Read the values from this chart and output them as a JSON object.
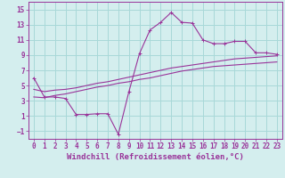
{
  "background_color": "#d4eeee",
  "grid_color": "#a8d8d8",
  "line_color": "#993399",
  "xlabel": "Windchill (Refroidissement éolien,°C)",
  "xlim": [
    -0.5,
    23.5
  ],
  "ylim": [
    -2.0,
    16.0
  ],
  "yticks": [
    -1,
    1,
    3,
    5,
    7,
    9,
    11,
    13,
    15
  ],
  "xticks": [
    0,
    1,
    2,
    3,
    4,
    5,
    6,
    7,
    8,
    9,
    10,
    11,
    12,
    13,
    14,
    15,
    16,
    17,
    18,
    19,
    20,
    21,
    22,
    23
  ],
  "line1_x": [
    0,
    1,
    2,
    3,
    4,
    5,
    6,
    7,
    8,
    9,
    10,
    11,
    12,
    13,
    14,
    15,
    16,
    17,
    18,
    19,
    20,
    21,
    22,
    23
  ],
  "line1_y": [
    6.0,
    3.5,
    3.5,
    3.3,
    1.2,
    1.2,
    1.3,
    1.3,
    -1.4,
    4.2,
    9.2,
    12.3,
    13.3,
    14.6,
    13.3,
    13.2,
    11.0,
    10.5,
    10.5,
    10.8,
    10.8,
    9.3,
    9.3,
    9.1
  ],
  "line2_x": [
    0,
    1,
    2,
    3,
    4,
    5,
    6,
    7,
    8,
    9,
    10,
    11,
    12,
    13,
    14,
    15,
    16,
    17,
    18,
    19,
    20,
    21,
    22,
    23
  ],
  "line2_y": [
    4.5,
    4.2,
    4.4,
    4.5,
    4.7,
    5.0,
    5.3,
    5.5,
    5.8,
    6.1,
    6.4,
    6.7,
    7.0,
    7.3,
    7.5,
    7.7,
    7.9,
    8.1,
    8.3,
    8.5,
    8.6,
    8.7,
    8.8,
    8.9
  ],
  "line3_x": [
    0,
    1,
    2,
    3,
    4,
    5,
    6,
    7,
    8,
    9,
    10,
    11,
    12,
    13,
    14,
    15,
    16,
    17,
    18,
    19,
    20,
    21,
    22,
    23
  ],
  "line3_y": [
    3.5,
    3.4,
    3.7,
    3.9,
    4.2,
    4.5,
    4.8,
    5.0,
    5.3,
    5.5,
    5.8,
    6.0,
    6.3,
    6.6,
    6.9,
    7.1,
    7.3,
    7.5,
    7.6,
    7.7,
    7.8,
    7.9,
    8.0,
    8.1
  ],
  "xlabel_fontsize": 6.5,
  "tick_fontsize": 5.5,
  "linewidth": 0.8,
  "markersize": 2.8
}
